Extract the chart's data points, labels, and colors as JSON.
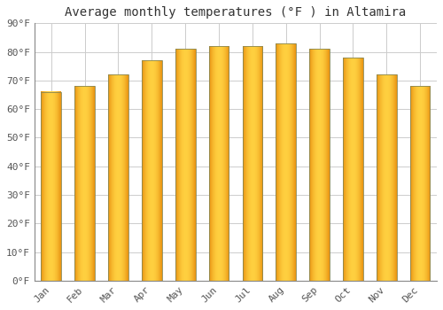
{
  "title": "Average monthly temperatures (°F ) in Altamira",
  "months": [
    "Jan",
    "Feb",
    "Mar",
    "Apr",
    "May",
    "Jun",
    "Jul",
    "Aug",
    "Sep",
    "Oct",
    "Nov",
    "Dec"
  ],
  "values": [
    66,
    68,
    72,
    77,
    81,
    82,
    82,
    83,
    81,
    78,
    72,
    68
  ],
  "bar_color_center": "#FFD966",
  "bar_color_edge": "#E8940A",
  "bar_border_color": "#888855",
  "background_color": "#ffffff",
  "plot_bg_color": "#ffffff",
  "ylim": [
    0,
    90
  ],
  "yticks": [
    0,
    10,
    20,
    30,
    40,
    50,
    60,
    70,
    80,
    90
  ],
  "ytick_labels": [
    "0°F",
    "10°F",
    "20°F",
    "30°F",
    "40°F",
    "50°F",
    "60°F",
    "70°F",
    "80°F",
    "90°F"
  ],
  "title_fontsize": 10,
  "tick_fontsize": 8,
  "grid_color": "#cccccc",
  "bar_width": 0.6
}
